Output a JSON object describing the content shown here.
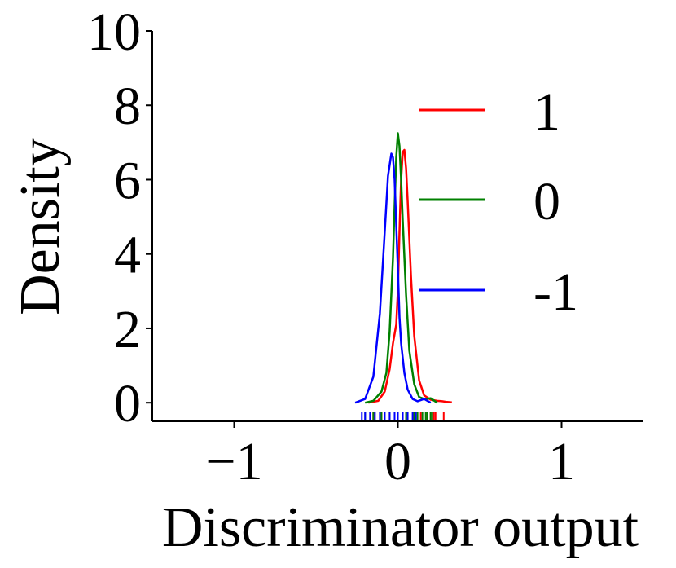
{
  "chart_data": {
    "type": "line",
    "title": "",
    "xlabel": "Discriminator output",
    "ylabel": "Density",
    "xlim": [
      -1.5,
      1.5
    ],
    "ylim": [
      -0.5,
      10.0
    ],
    "x_ticks": [
      {
        "value": -1,
        "label": "−1"
      },
      {
        "value": 0,
        "label": "0"
      },
      {
        "value": 1,
        "label": "1"
      }
    ],
    "y_ticks": [
      {
        "value": 0,
        "label": "0"
      },
      {
        "value": 2,
        "label": "2"
      },
      {
        "value": 4,
        "label": "4"
      },
      {
        "value": 6,
        "label": "6"
      },
      {
        "value": 8,
        "label": "8"
      },
      {
        "value": 10,
        "label": "10"
      }
    ],
    "grid": false,
    "legend_position": "upper-right",
    "series": [
      {
        "name": "1",
        "color": "#ff0000",
        "x": [
          -0.18,
          -0.12,
          -0.08,
          -0.05,
          -0.03,
          -0.01,
          0.0,
          0.01,
          0.02,
          0.03,
          0.04,
          0.05,
          0.06,
          0.08,
          0.1,
          0.13,
          0.16,
          0.2,
          0.24,
          0.27,
          0.3,
          0.33
        ],
        "y": [
          0.0,
          0.05,
          0.3,
          0.9,
          1.6,
          2.1,
          3.0,
          4.6,
          6.0,
          6.75,
          6.8,
          6.3,
          5.4,
          3.4,
          1.8,
          0.6,
          0.2,
          0.08,
          0.05,
          0.04,
          0.02,
          0.01
        ],
        "rug": [
          -0.15,
          -0.1,
          -0.05,
          0.0,
          0.05,
          0.1,
          0.14,
          0.18,
          0.2,
          0.22,
          0.23,
          0.28
        ]
      },
      {
        "name": "0",
        "color": "#008000",
        "x": [
          -0.2,
          -0.15,
          -0.1,
          -0.07,
          -0.05,
          -0.03,
          -0.02,
          -0.01,
          0.0,
          0.01,
          0.02,
          0.03,
          0.05,
          0.07,
          0.1,
          0.13,
          0.16,
          0.2,
          0.24
        ],
        "y": [
          0.0,
          0.05,
          0.3,
          0.8,
          1.9,
          3.9,
          5.3,
          6.6,
          7.25,
          6.9,
          6.0,
          4.9,
          2.9,
          1.4,
          0.5,
          0.15,
          0.1,
          0.12,
          0.0
        ],
        "rug": [
          -0.2,
          -0.15,
          -0.1,
          -0.05,
          0.0,
          0.05,
          0.1,
          0.12,
          0.15,
          0.17,
          0.18,
          0.2,
          0.21
        ]
      },
      {
        "name": "-1",
        "color": "#0000ff",
        "x": [
          -0.26,
          -0.2,
          -0.15,
          -0.11,
          -0.08,
          -0.06,
          -0.04,
          -0.03,
          -0.02,
          -0.01,
          0.0,
          0.01,
          0.02,
          0.04,
          0.06,
          0.09,
          0.12,
          0.16,
          0.2
        ],
        "y": [
          0.0,
          0.1,
          0.7,
          2.4,
          4.6,
          6.1,
          6.7,
          6.6,
          6.0,
          4.8,
          3.6,
          2.3,
          1.6,
          0.8,
          0.35,
          0.1,
          0.04,
          0.1,
          0.0
        ],
        "rug": [
          -0.22,
          -0.2,
          -0.17,
          -0.14,
          -0.11,
          -0.08,
          -0.05,
          -0.02,
          0.0,
          0.03,
          0.06,
          0.09,
          0.11
        ]
      }
    ]
  }
}
